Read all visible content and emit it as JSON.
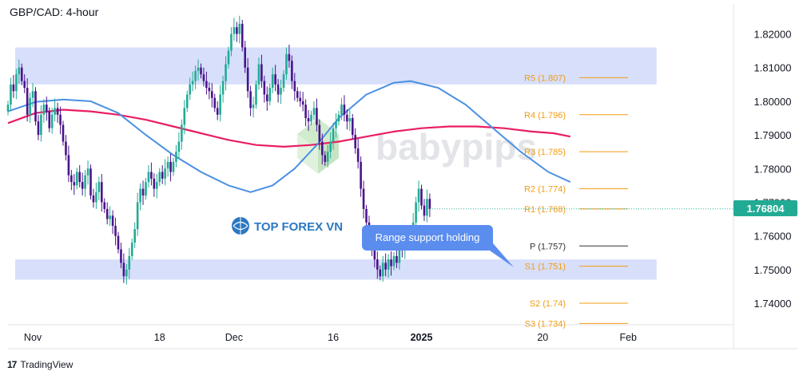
{
  "title": "GBP/CAD: 4-hour",
  "footer": {
    "logo_text": "17",
    "brand": "TradingView"
  },
  "price_tag": {
    "value": "1.76804",
    "color": "#22ab94"
  },
  "watermarks": {
    "top_forex": "TOP FOREX VN",
    "babypips": "babypips"
  },
  "colors": {
    "up_candle": "#22ab94",
    "down_candle": "#4a148c",
    "ma_fast": "#4a90e2",
    "ma_slow": "#e91e63",
    "zone": "#c9d4fa",
    "pivot": "#f39c12",
    "callout_bg": "#5b8def",
    "callout_text": "#ffffff"
  },
  "chart_data": {
    "type": "candlestick",
    "title": "GBP/CAD: 4-hour",
    "y_ticks": [
      1.82,
      1.81,
      1.8,
      1.79,
      1.78,
      1.77,
      1.76,
      1.75,
      1.74
    ],
    "y_tick_labels": [
      "1.82000",
      "1.81000",
      "1.80000",
      "1.79000",
      "1.78000",
      "1.77000",
      "1.76000",
      "1.75000",
      "1.74000"
    ],
    "ylim": [
      1.7336,
      1.8289
    ],
    "x_ticks": [
      {
        "label": "Nov",
        "bar": 9
      },
      {
        "label": "18",
        "bar": 55
      },
      {
        "label": "Dec",
        "bar": 82
      },
      {
        "label": "16",
        "bar": 118
      },
      {
        "label": "2025",
        "bar": 150
      },
      {
        "label": "20",
        "bar": 194
      },
      {
        "label": "Feb",
        "bar": 225
      }
    ],
    "last_price": 1.76804,
    "zones": [
      {
        "name": "resistance-zone",
        "from": 1.805,
        "to": 1.816,
        "bar_start": 0,
        "bar_end": 215
      },
      {
        "name": "support-zone",
        "from": 1.747,
        "to": 1.753,
        "bar_start": 0,
        "bar_end": 215
      }
    ],
    "pivot_levels": [
      {
        "label": "R5 (1.807)",
        "value": 1.807
      },
      {
        "label": "R4 (1.796)",
        "value": 1.796
      },
      {
        "label": "R3 (1.785)",
        "value": 1.785
      },
      {
        "label": "R2 (1.774)",
        "value": 1.774
      },
      {
        "label": "R1 (1.768)",
        "value": 1.768
      },
      {
        "label": "P (1.757)",
        "value": 1.757
      },
      {
        "label": "S1 (1.751)",
        "value": 1.751
      },
      {
        "label": "S2 (1.74)",
        "value": 1.74
      },
      {
        "label": "S3 (1.734)",
        "value": 1.734
      }
    ],
    "pivot_start_bar": 175,
    "pivot_end_bar": 208,
    "annotation": "Range support holding",
    "ma_fast": [
      [
        0,
        1.797
      ],
      [
        10,
        1.7998
      ],
      [
        20,
        1.8005
      ],
      [
        30,
        1.8
      ],
      [
        40,
        1.7965
      ],
      [
        50,
        1.79
      ],
      [
        60,
        1.784
      ],
      [
        70,
        1.779
      ],
      [
        80,
        1.775
      ],
      [
        88,
        1.773
      ],
      [
        96,
        1.775
      ],
      [
        104,
        1.78
      ],
      [
        112,
        1.787
      ],
      [
        120,
        1.795
      ],
      [
        130,
        1.802
      ],
      [
        140,
        1.8055
      ],
      [
        146,
        1.806
      ],
      [
        156,
        1.804
      ],
      [
        166,
        1.799
      ],
      [
        176,
        1.792
      ],
      [
        186,
        1.785
      ],
      [
        196,
        1.779
      ],
      [
        204,
        1.776
      ]
    ],
    "ma_slow": [
      [
        0,
        1.7935
      ],
      [
        10,
        1.7965
      ],
      [
        20,
        1.7975
      ],
      [
        30,
        1.797
      ],
      [
        40,
        1.796
      ],
      [
        50,
        1.7945
      ],
      [
        60,
        1.7925
      ],
      [
        70,
        1.7905
      ],
      [
        80,
        1.7885
      ],
      [
        90,
        1.787
      ],
      [
        100,
        1.7865
      ],
      [
        110,
        1.787
      ],
      [
        120,
        1.788
      ],
      [
        130,
        1.7895
      ],
      [
        140,
        1.791
      ],
      [
        150,
        1.792
      ],
      [
        160,
        1.7925
      ],
      [
        170,
        1.7925
      ],
      [
        180,
        1.792
      ],
      [
        190,
        1.791
      ],
      [
        198,
        1.7905
      ],
      [
        204,
        1.7895
      ]
    ],
    "closes": [
      1.799,
      1.805,
      1.803,
      1.808,
      1.81,
      1.806,
      1.804,
      1.796,
      1.801,
      1.803,
      1.794,
      1.79,
      1.796,
      1.799,
      1.797,
      1.792,
      1.796,
      1.798,
      1.796,
      1.793,
      1.788,
      1.784,
      1.778,
      1.776,
      1.775,
      1.779,
      1.776,
      1.774,
      1.778,
      1.78,
      1.772,
      1.77,
      1.773,
      1.776,
      1.77,
      1.768,
      1.765,
      1.766,
      1.763,
      1.76,
      1.756,
      1.752,
      1.748,
      1.75,
      1.754,
      1.758,
      1.762,
      1.77,
      1.774,
      1.772,
      1.776,
      1.779,
      1.777,
      1.774,
      1.776,
      1.779,
      1.777,
      1.78,
      1.782,
      1.779,
      1.782,
      1.785,
      1.788,
      1.793,
      1.798,
      1.802,
      1.805,
      1.806,
      1.809,
      1.81,
      1.808,
      1.806,
      1.804,
      1.803,
      1.801,
      1.798,
      1.796,
      1.802,
      1.806,
      1.811,
      1.815,
      1.82,
      1.822,
      1.82,
      1.823,
      1.816,
      1.81,
      1.803,
      1.798,
      1.799,
      1.805,
      1.811,
      1.806,
      1.802,
      1.8,
      1.804,
      1.808,
      1.805,
      1.802,
      1.804,
      1.808,
      1.814,
      1.812,
      1.806,
      1.803,
      1.801,
      1.8,
      1.799,
      1.795,
      1.794,
      1.796,
      1.798,
      1.793,
      1.788,
      1.784,
      1.782,
      1.785,
      1.788,
      1.792,
      1.794,
      1.796,
      1.799,
      1.796,
      1.794,
      1.795,
      1.79,
      1.786,
      1.782,
      1.774,
      1.768,
      1.764,
      1.76,
      1.756,
      1.753,
      1.75,
      1.748,
      1.752,
      1.75,
      1.753,
      1.751,
      1.754,
      1.752,
      1.757,
      1.756,
      1.759,
      1.76,
      1.758,
      1.764,
      1.77,
      1.774,
      1.769,
      1.766,
      1.771,
      1.768
    ]
  }
}
